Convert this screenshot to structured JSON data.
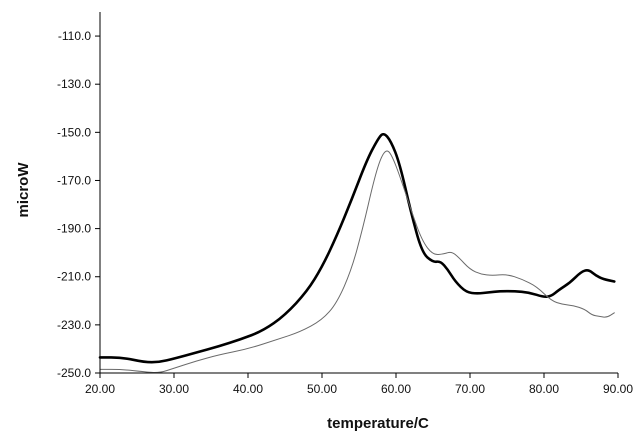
{
  "chart_data": {
    "type": "line",
    "title": "",
    "xlabel": "temperature/C",
    "ylabel": "microW",
    "xlim": [
      20,
      90
    ],
    "ylim": [
      -250,
      -100
    ],
    "x_ticks": [
      20,
      30,
      40,
      50,
      60,
      70,
      80,
      90
    ],
    "x_tick_labels": [
      "20.00",
      "30.00",
      "40.00",
      "50.00",
      "60.00",
      "70.00",
      "80.00",
      "90.00"
    ],
    "y_ticks": [
      -250,
      -230,
      -210,
      -190,
      -170,
      -150,
      -130,
      -110
    ],
    "y_tick_labels": [
      "-250.0",
      "-230.0",
      "-210.0",
      "-190.0",
      "-170.0",
      "-150.0",
      "-130.0",
      "-110.0"
    ],
    "grid": false,
    "legend": "none",
    "series": [
      {
        "style": "thick",
        "color": "#000000",
        "x": [
          20,
          23,
          26,
          28,
          30,
          33,
          36,
          39,
          42,
          45,
          48,
          50,
          52,
          54,
          56,
          57.5,
          58.3,
          59.3,
          60.5,
          62,
          63.5,
          65,
          66,
          67,
          68,
          69.5,
          71,
          72.5,
          74,
          76,
          78,
          80,
          81,
          82,
          83.5,
          85,
          86,
          87,
          88,
          89.5
        ],
        "values": [
          -243.5,
          -243.5,
          -245.5,
          -245.5,
          -244,
          -241.5,
          -239,
          -236,
          -232.5,
          -226,
          -216,
          -206,
          -193,
          -178,
          -162,
          -153,
          -150,
          -153.5,
          -163,
          -183,
          -200,
          -204,
          -203.5,
          -207,
          -212,
          -216.5,
          -217,
          -216.5,
          -216,
          -216,
          -216.5,
          -218.5,
          -218,
          -215.5,
          -212.5,
          -208,
          -207,
          -209.5,
          -211,
          -212
        ]
      },
      {
        "style": "thin",
        "color": "#6a6a6a",
        "x": [
          20,
          23,
          26,
          28,
          30,
          33,
          36,
          40,
          44,
          47,
          50,
          52,
          54,
          55.5,
          57,
          58,
          58.8,
          59.5,
          60.5,
          62,
          63.5,
          65,
          66.5,
          67.5,
          68.5,
          70,
          71.5,
          73,
          75,
          77,
          79,
          81,
          82.5,
          84,
          85.5,
          86.5,
          87.5,
          88.5,
          89.5
        ],
        "values": [
          -248.5,
          -248.5,
          -249.5,
          -250,
          -248,
          -245,
          -242.5,
          -240,
          -236,
          -233,
          -228,
          -221,
          -207,
          -190,
          -170,
          -160,
          -157,
          -160,
          -168,
          -182,
          -195,
          -201,
          -200.5,
          -199.5,
          -202,
          -207,
          -209,
          -209.5,
          -209,
          -211,
          -214,
          -220,
          -221.5,
          -222,
          -223.5,
          -226,
          -226.5,
          -227,
          -225
        ]
      }
    ]
  }
}
